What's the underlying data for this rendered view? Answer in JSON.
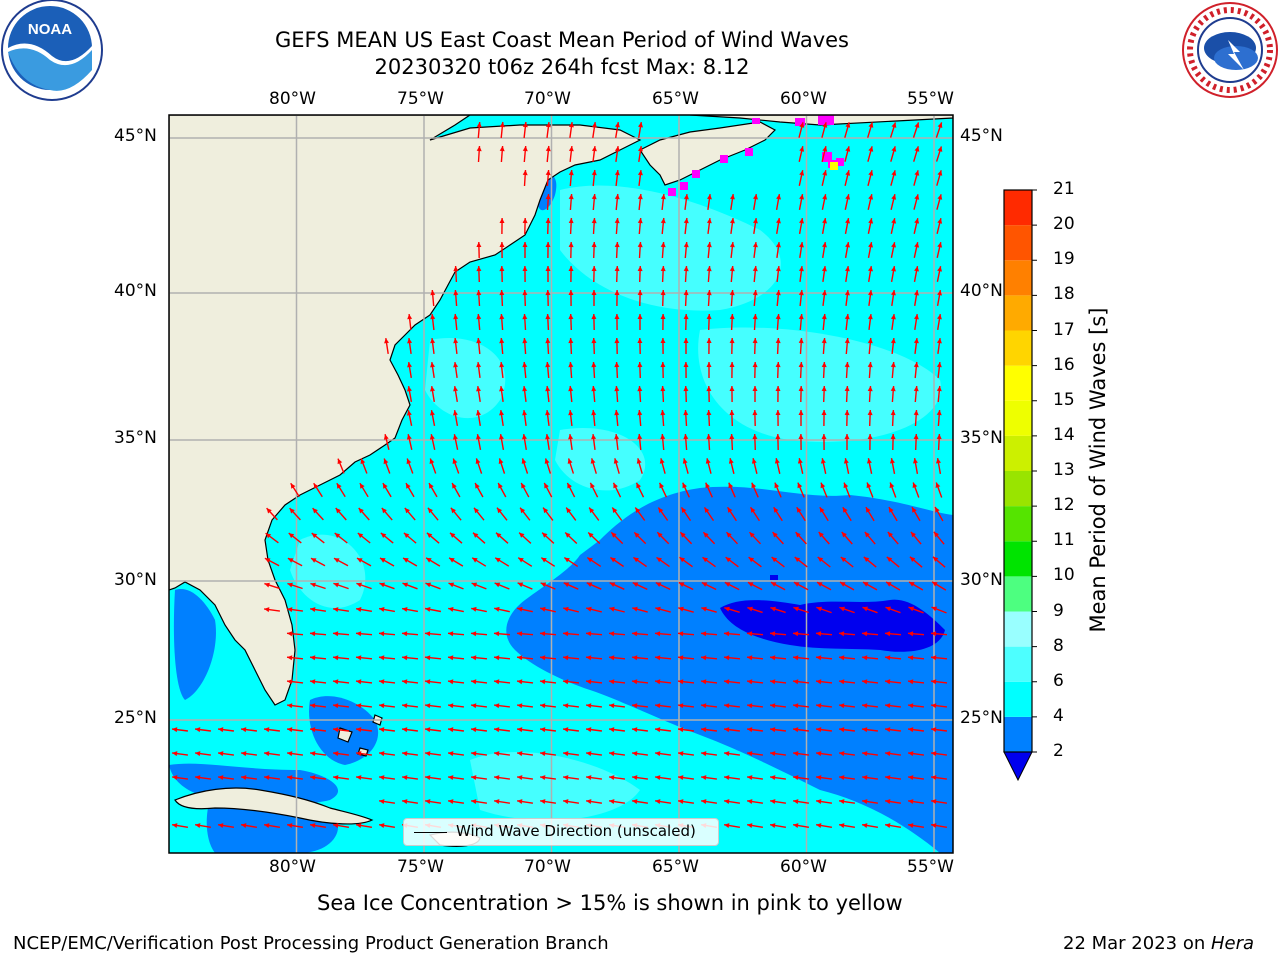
{
  "header": {
    "title": "GEFS MEAN US East Coast Mean Period of Wind Waves",
    "subtitle": "20230320 t06z 264h fcst   Max: 8.12"
  },
  "map": {
    "lon_labels": [
      "80°W",
      "75°W",
      "70°W",
      "65°W",
      "60°W",
      "55°W"
    ],
    "lat_labels": [
      "45°N",
      "40°N",
      "35°N",
      "30°N",
      "25°N"
    ],
    "lon_range": [
      -85,
      -54.25
    ],
    "lat_range": [
      20.5,
      46
    ],
    "colors": {
      "land": "#efeedd",
      "ocean_4_6": "#00ffff",
      "ocean_6_8": "#4dffff",
      "ocean_2_4": "#0080ff",
      "ocean_lt2": "#0000ee",
      "arrow": "#ff0000",
      "grid": "#b0b0b0",
      "ice": "#ff00ff"
    },
    "legend": {
      "label": "Wind Wave Direction (unscaled)"
    }
  },
  "colorbar": {
    "title": "Mean Period of Wind Waves [s]",
    "ticks": [
      "2",
      "4",
      "6",
      "8",
      "9",
      "10",
      "11",
      "12",
      "13",
      "14",
      "15",
      "16",
      "17",
      "18",
      "19",
      "20",
      "21"
    ],
    "bin_colors": [
      "#0080ff",
      "#00ffff",
      "#4dffff",
      "#99ffff",
      "#4dff80",
      "#00e400",
      "#55e400",
      "#99e400",
      "#ccf000",
      "#eeff00",
      "#ffff00",
      "#ffd500",
      "#ffaa00",
      "#ff8000",
      "#ff5500",
      "#ff2a00"
    ],
    "under_color": "#0000ee"
  },
  "footer": {
    "note": "Sea Ice Concentration > 15% is shown in pink to yellow",
    "left": "NCEP/EMC/Verification Post Processing Product Generation Branch",
    "right_date": "22 Mar 2023 on ",
    "right_host": "Hera"
  },
  "logos": {
    "left_text": "NOAA",
    "right_text": "NATIONAL WEATHER SERVICE"
  }
}
